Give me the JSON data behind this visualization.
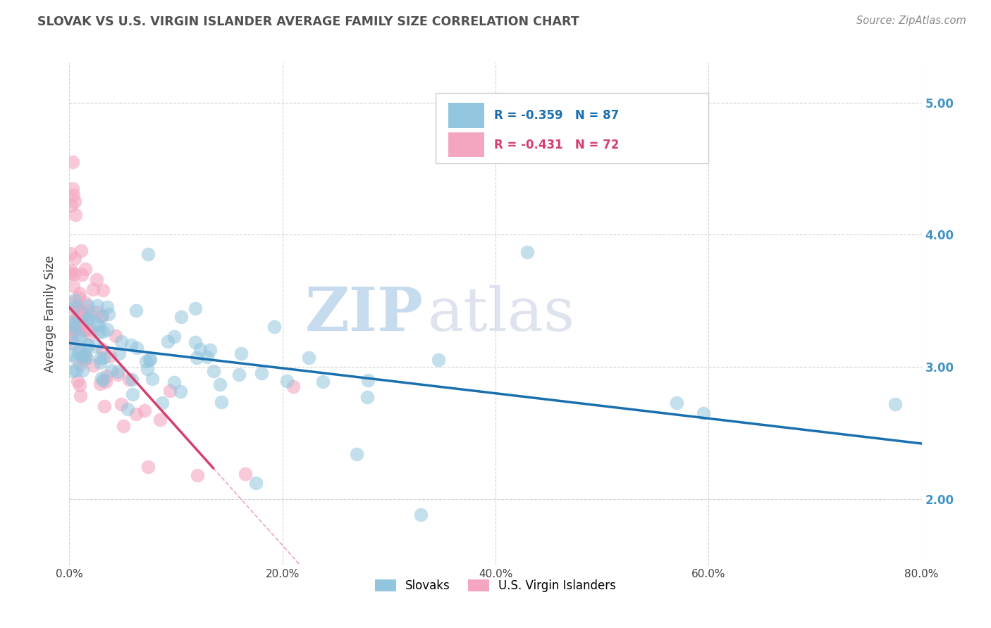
{
  "title": "SLOVAK VS U.S. VIRGIN ISLANDER AVERAGE FAMILY SIZE CORRELATION CHART",
  "source_text": "Source: ZipAtlas.com",
  "ylabel": "Average Family Size",
  "xlabel": "",
  "xlim": [
    0.0,
    0.8
  ],
  "ylim": [
    1.5,
    5.3
  ],
  "yticks": [
    2.0,
    3.0,
    4.0,
    5.0
  ],
  "xtick_labels": [
    "0.0%",
    "20.0%",
    "40.0%",
    "60.0%",
    "80.0%"
  ],
  "xtick_positions": [
    0.0,
    0.2,
    0.4,
    0.6,
    0.8
  ],
  "legend_entry1": "R = -0.359   N = 87",
  "legend_entry2": "R = -0.431   N = 72",
  "legend_label1": "Slovaks",
  "legend_label2": "U.S. Virgin Islanders",
  "color_blue": "#92c5de",
  "color_pink": "#f4a6c0",
  "trendline_blue": "#1a6faf",
  "trendline_pink": "#d43f6e",
  "background_color": "#ffffff",
  "grid_color": "#c8c8c8",
  "title_color": "#505050",
  "right_axis_color": "#4393c3",
  "legend_text_color": "#1a6faf",
  "legend_pink_text_color": "#d43f6e",
  "watermark_zip_color": "#b0cce8",
  "watermark_atlas_color": "#d0d8e8"
}
